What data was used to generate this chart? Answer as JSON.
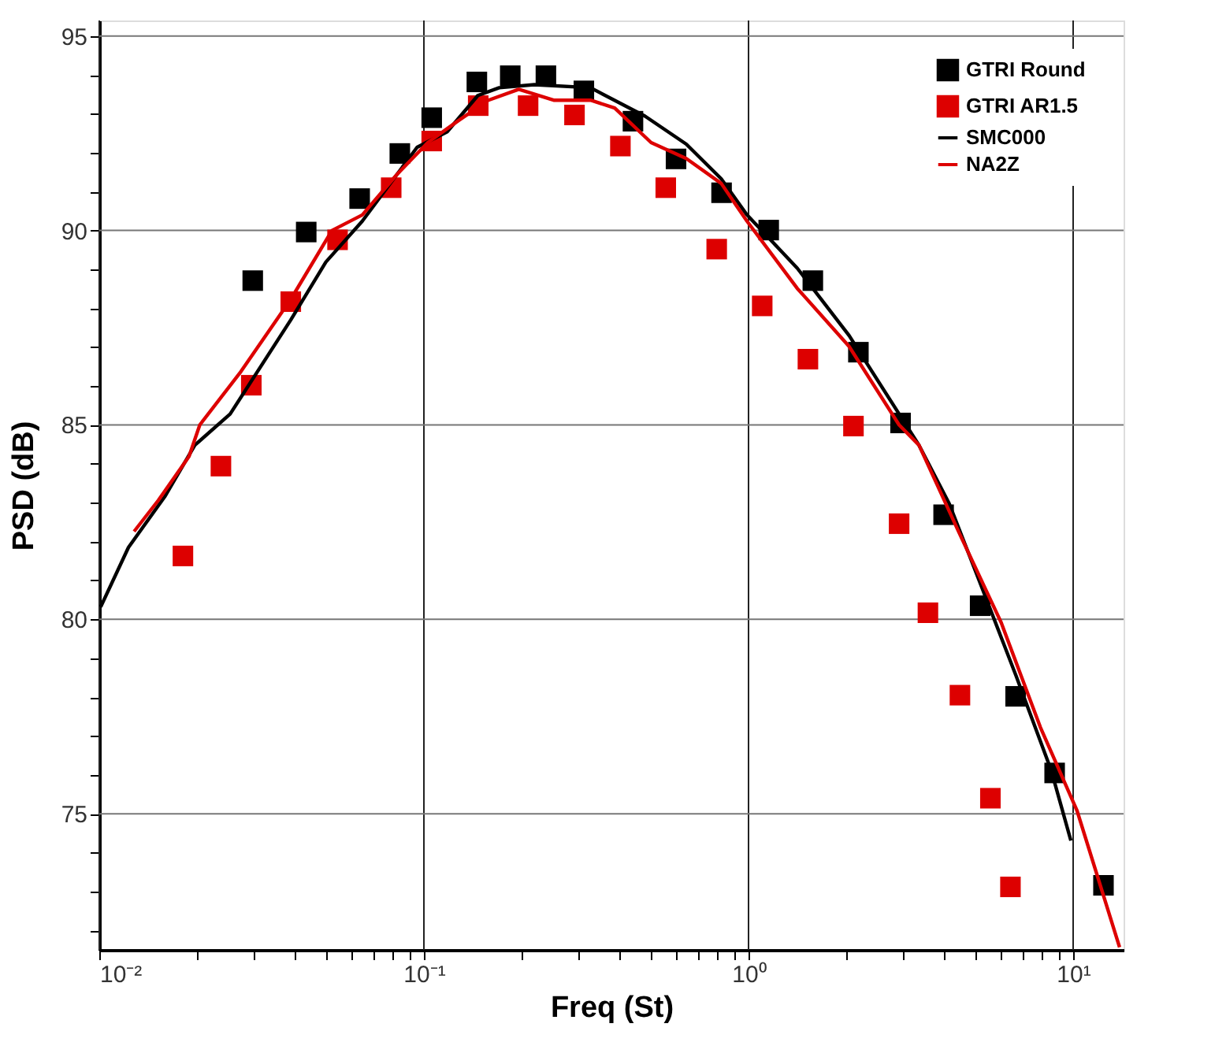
{
  "chart_data": {
    "type": "line",
    "xlabel": "Freq (St)",
    "ylabel": "PSD (dB)",
    "log": "x",
    "grid": true,
    "legend": "top right",
    "xlim": [
      0.01,
      14.3
    ],
    "ylim": [
      71.5,
      95.4
    ],
    "xticks": [
      {
        "value": 0.01,
        "label": "10⁻²"
      },
      {
        "value": 0.02,
        "label": null
      },
      {
        "value": 0.03,
        "label": null
      },
      {
        "value": 0.04,
        "label": null
      },
      {
        "value": 0.05,
        "label": null
      },
      {
        "value": 0.06,
        "label": null
      },
      {
        "value": 0.07,
        "label": null
      },
      {
        "value": 0.08,
        "label": null
      },
      {
        "value": 0.09,
        "label": null
      },
      {
        "value": 0.1,
        "label": "10⁻¹"
      },
      {
        "value": 0.2,
        "label": null
      },
      {
        "value": 0.3,
        "label": null
      },
      {
        "value": 0.4,
        "label": null
      },
      {
        "value": 0.5,
        "label": null
      },
      {
        "value": 0.6,
        "label": null
      },
      {
        "value": 0.7,
        "label": null
      },
      {
        "value": 0.8,
        "label": null
      },
      {
        "value": 0.9,
        "label": null
      },
      {
        "value": 1,
        "label": "10⁰"
      },
      {
        "value": 2,
        "label": null
      },
      {
        "value": 3,
        "label": null
      },
      {
        "value": 4,
        "label": null
      },
      {
        "value": 5,
        "label": null
      },
      {
        "value": 6,
        "label": null
      },
      {
        "value": 7,
        "label": null
      },
      {
        "value": 8,
        "label": null
      },
      {
        "value": 9,
        "label": null
      },
      {
        "value": 10,
        "label": "10¹"
      }
    ],
    "yticks": [
      {
        "value": 72,
        "label": null
      },
      {
        "value": 73,
        "label": null
      },
      {
        "value": 74,
        "label": null
      },
      75,
      {
        "value": 76,
        "label": null
      },
      {
        "value": 77,
        "label": null
      },
      {
        "value": 78,
        "label": null
      },
      {
        "value": 79,
        "label": null
      },
      80,
      {
        "value": 81,
        "label": null
      },
      {
        "value": 82,
        "label": null
      },
      {
        "value": 83,
        "label": null
      },
      {
        "value": 84,
        "label": null
      },
      85,
      {
        "value": 86,
        "label": null
      },
      {
        "value": 87,
        "label": null
      },
      {
        "value": 88,
        "label": null
      },
      {
        "value": 89,
        "label": null
      },
      90,
      {
        "value": 91,
        "label": null
      },
      {
        "value": 92,
        "label": null
      },
      {
        "value": 93,
        "label": null
      },
      {
        "value": 94,
        "label": null
      },
      95
    ],
    "series": [
      {
        "name": "GTRI Round",
        "type": "scatter",
        "marker": "square",
        "color": "#000000",
        "x": [
          0.0297,
          0.0434,
          0.0634,
          0.0843,
          0.1057,
          0.1456,
          0.1845,
          0.2376,
          0.311,
          0.4406,
          0.598,
          0.826,
          1.154,
          1.578,
          2.18,
          2.94,
          3.99,
          5.17,
          6.65,
          8.77,
          12.4
        ],
        "values": [
          88.71,
          89.96,
          90.82,
          91.98,
          92.9,
          93.82,
          93.98,
          93.98,
          93.59,
          92.81,
          91.84,
          90.97,
          90.01,
          88.71,
          86.87,
          85.05,
          82.69,
          80.35,
          78.02,
          76.05,
          73.16
        ]
      },
      {
        "name": "GTRI AR1.5",
        "type": "scatter",
        "marker": "square",
        "color": "#dd0000",
        "x": [
          0.0181,
          0.0237,
          0.0294,
          0.0389,
          0.0542,
          0.0793,
          0.1057,
          0.147,
          0.2094,
          0.291,
          0.403,
          0.556,
          0.798,
          1.102,
          1.524,
          2.105,
          2.91,
          3.57,
          4.48,
          5.56,
          6.41
        ],
        "values": [
          81.63,
          83.94,
          86.02,
          88.17,
          89.76,
          91.1,
          92.3,
          93.21,
          93.21,
          92.97,
          92.17,
          91.1,
          89.52,
          88.06,
          86.69,
          84.97,
          82.46,
          80.17,
          78.05,
          75.4,
          73.12
        ]
      },
      {
        "name": "SMC000",
        "type": "line",
        "line_style": "solid",
        "color": "#000000",
        "x": [
          0.0101,
          0.0123,
          0.0159,
          0.0197,
          0.0253,
          0.0389,
          0.0499,
          0.0646,
          0.0953,
          0.118,
          0.1466,
          0.1706,
          0.2188,
          0.326,
          0.48,
          0.643,
          0.824,
          0.989,
          1.413,
          2.04,
          2.91,
          3.35,
          4.15,
          5.15,
          6.67,
          8.55,
          9.84
        ],
        "values": [
          80.32,
          81.85,
          83.15,
          84.48,
          85.28,
          87.7,
          89.19,
          90.24,
          92.14,
          92.54,
          93.47,
          93.67,
          93.75,
          93.67,
          92.94,
          92.22,
          91.33,
          90.4,
          89.03,
          87.3,
          85.28,
          84.48,
          82.98,
          80.97,
          78.55,
          76.13,
          74.31
        ]
      },
      {
        "name": "NA2Z",
        "type": "line",
        "line_style": "solid",
        "color": "#dd0000",
        "x": [
          0.0128,
          0.0152,
          0.0189,
          0.0204,
          0.0273,
          0.0389,
          0.0521,
          0.0646,
          0.0828,
          0.1028,
          0.1275,
          0.158,
          0.196,
          0.251,
          0.326,
          0.387,
          0.501,
          0.643,
          0.824,
          0.989,
          1.413,
          2.04,
          2.91,
          3.35,
          4.48,
          6.0,
          7.93,
          10.28,
          13.9
        ],
        "values": [
          82.26,
          83.06,
          84.19,
          85.0,
          86.37,
          88.23,
          90.0,
          90.4,
          91.45,
          92.26,
          92.82,
          93.35,
          93.63,
          93.35,
          93.35,
          93.15,
          92.26,
          91.85,
          91.21,
          90.24,
          88.51,
          87.02,
          85.0,
          84.48,
          82.18,
          79.92,
          77.22,
          75.08,
          71.57
        ]
      }
    ]
  }
}
